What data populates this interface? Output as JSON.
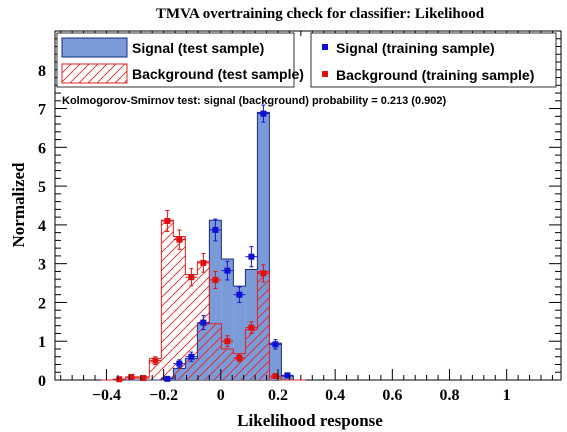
{
  "chart_data": {
    "type": "bar",
    "title": "TMVA overtraining check for classifier: Likelihood",
    "xlabel": "Likelihood response",
    "ylabel": "Normalized",
    "xlim": [
      -0.58,
      1.19
    ],
    "ylim": [
      0,
      9
    ],
    "x_ticks": [
      -0.4,
      -0.2,
      0,
      0.2,
      0.4,
      0.6,
      0.8,
      1
    ],
    "x_tick_labels": [
      "−0.4",
      "−0.2",
      "0",
      "0.2",
      "0.4",
      "0.6",
      "0.8",
      "1"
    ],
    "y_ticks": [
      0,
      1,
      2,
      3,
      4,
      5,
      6,
      7,
      8
    ],
    "y_tick_labels": [
      "0",
      "1",
      "2",
      "3",
      "4",
      "5",
      "6",
      "7",
      "8"
    ],
    "bin_edges": [
      -0.418,
      -0.376,
      -0.334,
      -0.292,
      -0.25,
      -0.208,
      -0.166,
      -0.124,
      -0.082,
      -0.04,
      0.002,
      0.044,
      0.086,
      0.128,
      0.17,
      0.212,
      0.254,
      0.296
    ],
    "series": [
      {
        "name": "Signal (test sample)",
        "style": "filled-histogram",
        "color": "#7b9bd8",
        "edge_color": "#1a2d80",
        "values": [
          0,
          0,
          0,
          0,
          0,
          0.05,
          0.3,
          0.55,
          1.45,
          4.12,
          3.12,
          2.42,
          2.85,
          6.9,
          0.95,
          0.1,
          0
        ]
      },
      {
        "name": "Background (test sample)",
        "style": "hatched-histogram",
        "color": "#e02020",
        "values": [
          0,
          0.02,
          0.05,
          0.08,
          0.55,
          4.12,
          3.7,
          2.72,
          3.05,
          1.45,
          0.8,
          0.68,
          1.3,
          2.8,
          0.05,
          0,
          0
        ]
      },
      {
        "name": "Signal (training sample)",
        "style": "points",
        "color": "#1010d0",
        "values": [
          null,
          null,
          null,
          null,
          null,
          0.03,
          0.42,
          0.6,
          1.48,
          3.87,
          2.82,
          2.2,
          3.18,
          6.87,
          0.92,
          0.12,
          null
        ],
        "errors": [
          null,
          null,
          null,
          null,
          null,
          0.03,
          0.1,
          0.12,
          0.18,
          0.28,
          0.24,
          0.2,
          0.26,
          0.22,
          0.12,
          0.05,
          null
        ]
      },
      {
        "name": "Background (training sample)",
        "style": "points",
        "color": "#e01010",
        "values": [
          null,
          0.02,
          0.08,
          0.05,
          0.5,
          4.1,
          3.62,
          2.65,
          3.02,
          2.58,
          1.0,
          0.57,
          1.35,
          2.75,
          0.1,
          null,
          null
        ],
        "errors": [
          null,
          0.02,
          0.05,
          0.04,
          0.1,
          0.27,
          0.25,
          0.22,
          0.24,
          0.22,
          0.14,
          0.1,
          0.15,
          0.22,
          0.05,
          null,
          null
        ]
      }
    ],
    "annotation": "Kolmogorov-Smirnov test: signal (background) probability = 0.213 (0.902)",
    "grid": false,
    "legend_placement": "top"
  }
}
